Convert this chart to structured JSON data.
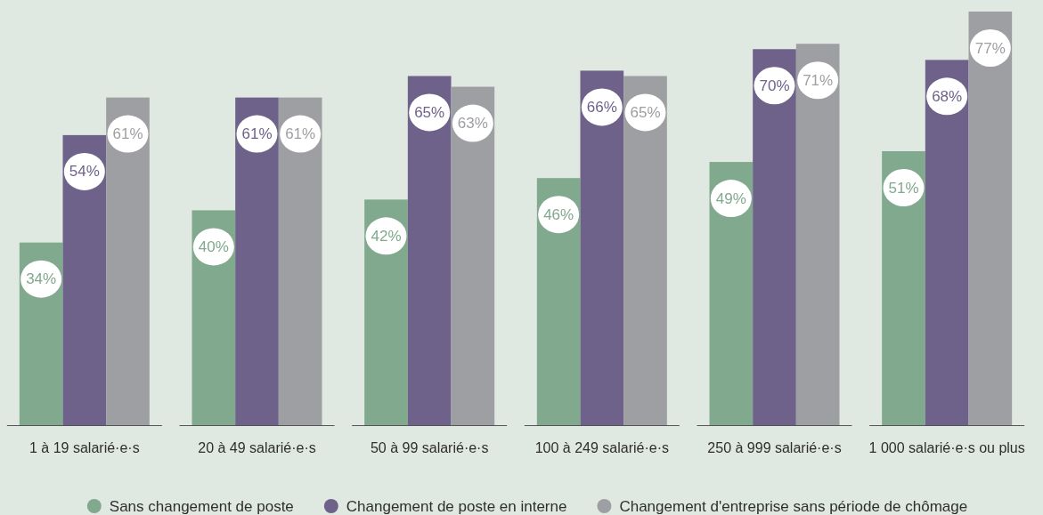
{
  "chart_data": {
    "type": "bar",
    "categories": [
      "1 à 19 salarié·e·s",
      "20 à 49 salarié·e·s",
      "50 à 99 salarié·e·s",
      "100 à 249 salarié·e·s",
      "250 à 999 salarié·e·s",
      "1 000 salarié·e·s ou plus"
    ],
    "series": [
      {
        "name": "Sans changement de poste",
        "color": "#80a98d",
        "values": [
          34,
          40,
          42,
          46,
          49,
          51
        ],
        "value_labels": [
          "34%",
          "40%",
          "42%",
          "46%",
          "49%",
          "51%"
        ]
      },
      {
        "name": "Changement de poste en interne",
        "color": "#6f628a",
        "values": [
          54,
          61,
          65,
          66,
          70,
          68
        ],
        "value_labels": [
          "54%",
          "61%",
          "65%",
          "66%",
          "70%",
          "68%"
        ]
      },
      {
        "name": "Changement d'entreprise sans période de chômage",
        "color": "#9e9fa3",
        "values": [
          61,
          61,
          63,
          65,
          71,
          77
        ],
        "value_labels": [
          "61%",
          "61%",
          "63%",
          "65%",
          "71%",
          "77%"
        ]
      }
    ],
    "legend": "bottom"
  }
}
